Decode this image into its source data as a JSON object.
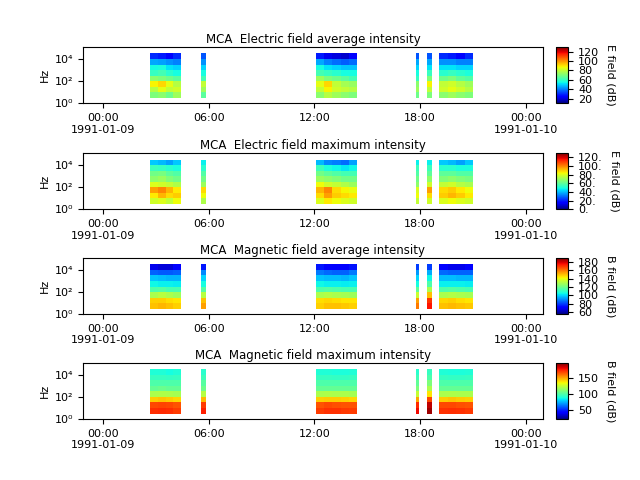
{
  "chart_data": [
    {
      "type": "heatmap",
      "title": "MCA  Electric field average intensity",
      "y_label": "Hz",
      "log": "y",
      "xlim": [
        "1991-01-08T22:52",
        "1991-01-10T00:58"
      ],
      "ylim": [
        1,
        120000
      ],
      "xticks": [
        {
          "value": "1991-01-09T00:00",
          "label": "00:00\n1991-01-09"
        },
        {
          "value": "1991-01-09T06:00",
          "label": "06:00"
        },
        {
          "value": "1991-01-09T12:00",
          "label": "12:00"
        },
        {
          "value": "1991-01-09T18:00",
          "label": "18:00"
        },
        {
          "value": "1991-01-10T00:00",
          "label": "00:00\n1991-01-10"
        }
      ],
      "yticks": [
        {
          "value": 1,
          "label": "10⁰"
        },
        {
          "value": 100,
          "label": "10²"
        },
        {
          "value": 10000,
          "label": "10⁴"
        }
      ],
      "x_bins": [
        [
          "1991-01-09T02:40",
          "1991-01-09T03:06"
        ],
        [
          "1991-01-09T03:06",
          "1991-01-09T03:33"
        ],
        [
          "1991-01-09T03:33",
          "1991-01-09T03:59"
        ],
        [
          "1991-01-09T03:59",
          "1991-01-09T04:25"
        ],
        [
          "1991-01-09T05:35",
          "1991-01-09T05:50"
        ],
        [
          "1991-01-09T12:05",
          "1991-01-09T12:33"
        ],
        [
          "1991-01-09T12:33",
          "1991-01-09T13:01"
        ],
        [
          "1991-01-09T13:01",
          "1991-01-09T13:29"
        ],
        [
          "1991-01-09T13:29",
          "1991-01-09T13:57"
        ],
        [
          "1991-01-09T13:57",
          "1991-01-09T14:25"
        ],
        [
          "1991-01-09T17:45",
          "1991-01-09T17:55"
        ],
        [
          "1991-01-09T18:25",
          "1991-01-09T18:40"
        ],
        [
          "1991-01-09T19:05",
          "1991-01-09T19:34"
        ],
        [
          "1991-01-09T19:34",
          "1991-01-09T20:03"
        ],
        [
          "1991-01-09T20:03",
          "1991-01-09T20:32"
        ],
        [
          "1991-01-09T20:32",
          "1991-01-09T21:00"
        ]
      ],
      "y_bins": [
        3.16,
        10,
        31.6,
        100,
        316,
        1000,
        3162,
        10000,
        31623
      ],
      "cells": [
        [
          70,
          78,
          88,
          72,
          60,
          55,
          45,
          30
        ],
        [
          72,
          85,
          92,
          70,
          62,
          56,
          44,
          28
        ],
        [
          68,
          80,
          85,
          68,
          58,
          52,
          42,
          25
        ],
        [
          75,
          82,
          78,
          65,
          55,
          50,
          40,
          30
        ],
        [
          65,
          75,
          80,
          62,
          55,
          50,
          42,
          35
        ],
        [
          72,
          80,
          85,
          75,
          62,
          55,
          45,
          28
        ],
        [
          78,
          88,
          92,
          70,
          60,
          52,
          40,
          22
        ],
        [
          75,
          82,
          80,
          68,
          58,
          50,
          38,
          20
        ],
        [
          72,
          80,
          76,
          65,
          55,
          48,
          36,
          18
        ],
        [
          70,
          78,
          74,
          62,
          55,
          48,
          38,
          25
        ],
        [
          68,
          75,
          72,
          60,
          55,
          50,
          45,
          35
        ],
        [
          70,
          80,
          88,
          70,
          60,
          52,
          45,
          35
        ],
        [
          72,
          82,
          80,
          68,
          58,
          52,
          42,
          30
        ],
        [
          75,
          85,
          82,
          70,
          60,
          52,
          42,
          28
        ],
        [
          72,
          82,
          78,
          66,
          58,
          50,
          40,
          25
        ],
        [
          70,
          78,
          75,
          64,
          56,
          50,
          40,
          30
        ]
      ],
      "colorbar": {
        "label": "E field (dB)",
        "range": [
          10,
          130
        ],
        "ticks": [
          20,
          40,
          60,
          80,
          100,
          120
        ]
      }
    },
    {
      "type": "heatmap",
      "title": "MCA  Electric field maximum intensity",
      "y_label": "Hz",
      "log": "y",
      "xlim": [
        "1991-01-08T22:52",
        "1991-01-10T00:58"
      ],
      "ylim": [
        1,
        120000
      ],
      "xticks": [
        {
          "value": "1991-01-09T00:00",
          "label": "00:00\n1991-01-09"
        },
        {
          "value": "1991-01-09T06:00",
          "label": "06:00"
        },
        {
          "value": "1991-01-09T12:00",
          "label": "12:00"
        },
        {
          "value": "1991-01-09T18:00",
          "label": "18:00"
        },
        {
          "value": "1991-01-10T00:00",
          "label": "00:00\n1991-01-10"
        }
      ],
      "yticks": [
        {
          "value": 1,
          "label": "10⁰"
        },
        {
          "value": 100,
          "label": "10²"
        },
        {
          "value": 10000,
          "label": "10⁴"
        }
      ],
      "x_bins": [
        [
          "1991-01-09T02:40",
          "1991-01-09T03:06"
        ],
        [
          "1991-01-09T03:06",
          "1991-01-09T03:33"
        ],
        [
          "1991-01-09T03:33",
          "1991-01-09T03:59"
        ],
        [
          "1991-01-09T03:59",
          "1991-01-09T04:25"
        ],
        [
          "1991-01-09T05:35",
          "1991-01-09T05:50"
        ],
        [
          "1991-01-09T12:05",
          "1991-01-09T12:33"
        ],
        [
          "1991-01-09T12:33",
          "1991-01-09T13:01"
        ],
        [
          "1991-01-09T13:01",
          "1991-01-09T13:29"
        ],
        [
          "1991-01-09T13:29",
          "1991-01-09T13:57"
        ],
        [
          "1991-01-09T13:57",
          "1991-01-09T14:25"
        ],
        [
          "1991-01-09T17:45",
          "1991-01-09T17:55"
        ],
        [
          "1991-01-09T18:25",
          "1991-01-09T18:40"
        ],
        [
          "1991-01-09T19:05",
          "1991-01-09T19:34"
        ],
        [
          "1991-01-09T19:34",
          "1991-01-09T20:03"
        ],
        [
          "1991-01-09T20:03",
          "1991-01-09T20:32"
        ],
        [
          "1991-01-09T20:32",
          "1991-01-09T21:00"
        ]
      ],
      "y_bins": [
        3.16,
        10,
        31.6,
        100,
        316,
        1000,
        3162,
        10000,
        31623
      ],
      "cells": [
        [
          78,
          86,
          96,
          80,
          68,
          63,
          55,
          42
        ],
        [
          80,
          93,
          100,
          78,
          70,
          64,
          54,
          40
        ],
        [
          76,
          88,
          93,
          76,
          66,
          60,
          52,
          37
        ],
        [
          83,
          90,
          86,
          73,
          63,
          58,
          50,
          42
        ],
        [
          73,
          83,
          88,
          70,
          63,
          58,
          52,
          47
        ],
        [
          80,
          88,
          93,
          83,
          70,
          63,
          55,
          40
        ],
        [
          86,
          96,
          100,
          78,
          68,
          60,
          50,
          34
        ],
        [
          83,
          90,
          88,
          76,
          66,
          58,
          48,
          32
        ],
        [
          80,
          88,
          84,
          73,
          63,
          56,
          46,
          30
        ],
        [
          78,
          86,
          82,
          70,
          63,
          56,
          48,
          37
        ],
        [
          76,
          83,
          80,
          68,
          63,
          58,
          55,
          47
        ],
        [
          78,
          88,
          96,
          78,
          68,
          60,
          55,
          47
        ],
        [
          80,
          90,
          88,
          76,
          66,
          60,
          52,
          42
        ],
        [
          83,
          93,
          90,
          78,
          68,
          60,
          52,
          40
        ],
        [
          80,
          90,
          86,
          74,
          66,
          58,
          50,
          37
        ],
        [
          78,
          86,
          83,
          72,
          64,
          58,
          50,
          42
        ]
      ],
      "colorbar": {
        "label": "E field (dB)",
        "range": [
          0,
          130
        ],
        "ticks": [
          {
            "value": 0,
            "label": "0."
          },
          {
            "value": 20,
            "label": "20."
          },
          {
            "value": 40,
            "label": "40."
          },
          {
            "value": 60,
            "label": "60."
          },
          {
            "value": 80,
            "label": "80."
          },
          {
            "value": 100,
            "label": "100."
          },
          {
            "value": 120,
            "label": "120."
          }
        ]
      }
    },
    {
      "type": "heatmap",
      "title": "MCA  Magnetic field average intensity",
      "y_label": "Hz",
      "log": "y",
      "xlim": [
        "1991-01-08T22:52",
        "1991-01-10T00:58"
      ],
      "ylim": [
        1,
        120000
      ],
      "xticks": [
        {
          "value": "1991-01-09T00:00",
          "label": "00:00\n1991-01-09"
        },
        {
          "value": "1991-01-09T06:00",
          "label": "06:00"
        },
        {
          "value": "1991-01-09T12:00",
          "label": "12:00"
        },
        {
          "value": "1991-01-09T18:00",
          "label": "18:00"
        },
        {
          "value": "1991-01-10T00:00",
          "label": "00:00\n1991-01-10"
        }
      ],
      "yticks": [
        {
          "value": 1,
          "label": "10⁰"
        },
        {
          "value": 100,
          "label": "10²"
        },
        {
          "value": 10000,
          "label": "10⁴"
        }
      ],
      "x_bins": [
        [
          "1991-01-09T02:40",
          "1991-01-09T03:06"
        ],
        [
          "1991-01-09T03:06",
          "1991-01-09T03:33"
        ],
        [
          "1991-01-09T03:33",
          "1991-01-09T03:59"
        ],
        [
          "1991-01-09T03:59",
          "1991-01-09T04:25"
        ],
        [
          "1991-01-09T05:35",
          "1991-01-09T05:50"
        ],
        [
          "1991-01-09T12:05",
          "1991-01-09T12:33"
        ],
        [
          "1991-01-09T12:33",
          "1991-01-09T13:01"
        ],
        [
          "1991-01-09T13:01",
          "1991-01-09T13:29"
        ],
        [
          "1991-01-09T13:29",
          "1991-01-09T13:57"
        ],
        [
          "1991-01-09T13:57",
          "1991-01-09T14:25"
        ],
        [
          "1991-01-09T17:45",
          "1991-01-09T17:55"
        ],
        [
          "1991-01-09T18:25",
          "1991-01-09T18:40"
        ],
        [
          "1991-01-09T19:05",
          "1991-01-09T19:34"
        ],
        [
          "1991-01-09T19:34",
          "1991-01-09T20:03"
        ],
        [
          "1991-01-09T20:03",
          "1991-01-09T20:32"
        ],
        [
          "1991-01-09T20:32",
          "1991-01-09T21:00"
        ]
      ],
      "y_bins": [
        3.16,
        10,
        31.6,
        100,
        316,
        1000,
        3162,
        10000,
        31623
      ],
      "cells": [
        [
          150,
          148,
          130,
          115,
          105,
          98,
          85,
          68
        ],
        [
          152,
          148,
          132,
          116,
          104,
          97,
          84,
          66
        ],
        [
          150,
          146,
          130,
          114,
          104,
          96,
          84,
          66
        ],
        [
          148,
          145,
          128,
          114,
          103,
          96,
          85,
          70
        ],
        [
          155,
          150,
          132,
          116,
          106,
          100,
          90,
          75
        ],
        [
          148,
          146,
          130,
          115,
          105,
          98,
          88,
          75
        ],
        [
          150,
          147,
          131,
          116,
          104,
          97,
          86,
          72
        ],
        [
          150,
          146,
          130,
          115,
          104,
          97,
          85,
          70
        ],
        [
          149,
          145,
          129,
          114,
          103,
          96,
          85,
          70
        ],
        [
          148,
          145,
          128,
          114,
          104,
          98,
          88,
          74
        ],
        [
          160,
          155,
          135,
          118,
          106,
          100,
          92,
          80
        ],
        [
          175,
          170,
          150,
          130,
          115,
          105,
          95,
          80
        ],
        [
          150,
          147,
          130,
          115,
          104,
          97,
          86,
          70
        ],
        [
          151,
          148,
          131,
          116,
          104,
          97,
          85,
          68
        ],
        [
          150,
          146,
          130,
          115,
          104,
          96,
          85,
          68
        ],
        [
          149,
          145,
          129,
          114,
          103,
          96,
          85,
          70
        ]
      ],
      "colorbar": {
        "label": "B field (dB)",
        "range": [
          55,
          190
        ],
        "ticks": [
          60,
          80,
          100,
          120,
          140,
          160,
          180
        ]
      }
    },
    {
      "type": "heatmap",
      "title": "MCA  Magnetic field maximum intensity",
      "y_label": "Hz",
      "log": "y",
      "xlim": [
        "1991-01-08T22:52",
        "1991-01-10T00:58"
      ],
      "ylim": [
        1,
        120000
      ],
      "xticks": [
        {
          "value": "1991-01-09T00:00",
          "label": "00:00\n1991-01-09"
        },
        {
          "value": "1991-01-09T06:00",
          "label": "06:00"
        },
        {
          "value": "1991-01-09T12:00",
          "label": "12:00"
        },
        {
          "value": "1991-01-09T18:00",
          "label": "18:00"
        },
        {
          "value": "1991-01-10T00:00",
          "label": "00:00\n1991-01-10"
        }
      ],
      "yticks": [
        {
          "value": 1,
          "label": "10⁰"
        },
        {
          "value": 100,
          "label": "10²"
        },
        {
          "value": 10000,
          "label": "10⁴"
        }
      ],
      "x_bins": [
        [
          "1991-01-09T02:40",
          "1991-01-09T03:06"
        ],
        [
          "1991-01-09T03:06",
          "1991-01-09T03:33"
        ],
        [
          "1991-01-09T03:33",
          "1991-01-09T03:59"
        ],
        [
          "1991-01-09T03:59",
          "1991-01-09T04:25"
        ],
        [
          "1991-01-09T05:35",
          "1991-01-09T05:50"
        ],
        [
          "1991-01-09T12:05",
          "1991-01-09T12:33"
        ],
        [
          "1991-01-09T12:33",
          "1991-01-09T13:01"
        ],
        [
          "1991-01-09T13:01",
          "1991-01-09T13:29"
        ],
        [
          "1991-01-09T13:29",
          "1991-01-09T13:57"
        ],
        [
          "1991-01-09T13:57",
          "1991-01-09T14:25"
        ],
        [
          "1991-01-09T17:45",
          "1991-01-09T17:55"
        ],
        [
          "1991-01-09T18:25",
          "1991-01-09T18:40"
        ],
        [
          "1991-01-09T19:05",
          "1991-01-09T19:34"
        ],
        [
          "1991-01-09T19:34",
          "1991-01-09T20:03"
        ],
        [
          "1991-01-09T20:03",
          "1991-01-09T20:32"
        ],
        [
          "1991-01-09T20:32",
          "1991-01-09T21:00"
        ]
      ],
      "y_bins": [
        3.16,
        10,
        31.6,
        100,
        316,
        1000,
        3162,
        10000,
        31623
      ],
      "cells": [
        [
          175,
          170,
          145,
          120,
          105,
          100,
          95,
          90
        ],
        [
          176,
          171,
          146,
          121,
          106,
          100,
          95,
          90
        ],
        [
          175,
          170,
          145,
          120,
          105,
          100,
          94,
          88
        ],
        [
          172,
          168,
          143,
          119,
          105,
          100,
          95,
          90
        ],
        [
          178,
          172,
          148,
          122,
          107,
          102,
          96,
          92
        ],
        [
          172,
          168,
          144,
          120,
          105,
          100,
          95,
          90
        ],
        [
          174,
          170,
          145,
          121,
          105,
          100,
          95,
          90
        ],
        [
          174,
          169,
          145,
          120,
          105,
          100,
          94,
          89
        ],
        [
          173,
          168,
          144,
          120,
          105,
          100,
          94,
          89
        ],
        [
          172,
          168,
          143,
          119,
          105,
          100,
          95,
          90
        ],
        [
          182,
          176,
          152,
          126,
          110,
          104,
          97,
          92
        ],
        [
          195,
          190,
          170,
          140,
          120,
          110,
          100,
          95
        ],
        [
          174,
          170,
          145,
          120,
          105,
          100,
          95,
          90
        ],
        [
          175,
          170,
          146,
          121,
          105,
          100,
          94,
          89
        ],
        [
          174,
          169,
          145,
          120,
          105,
          100,
          94,
          89
        ],
        [
          173,
          168,
          144,
          120,
          105,
          100,
          95,
          90
        ]
      ],
      "colorbar": {
        "label": "B field (dB)",
        "range": [
          20,
          200
        ],
        "ticks": [
          50,
          100,
          150
        ]
      }
    }
  ]
}
